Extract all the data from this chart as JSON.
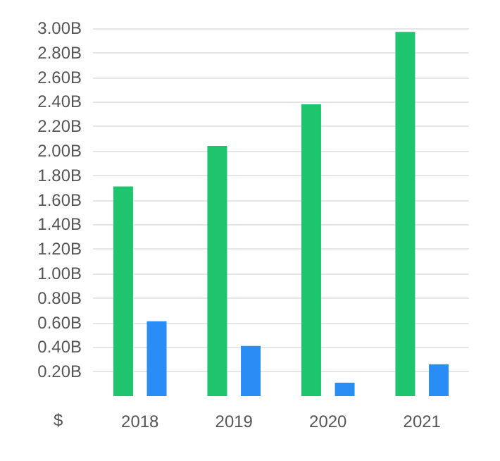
{
  "chart_data": {
    "type": "bar",
    "ylabel": "$",
    "categories": [
      "2018",
      "2019",
      "2020",
      "2021"
    ],
    "series": [
      {
        "color": "#1fc46e",
        "values": [
          1.71,
          2.04,
          2.38,
          2.97
        ]
      },
      {
        "color": "#2a8cf5",
        "values": [
          0.61,
          0.41,
          0.11,
          0.26
        ]
      }
    ],
    "ylim": [
      0,
      3
    ],
    "yticks": [
      {
        "value": 0.2,
        "label": "0.20B"
      },
      {
        "value": 0.4,
        "label": "0.40B"
      },
      {
        "value": 0.6,
        "label": "0.60B"
      },
      {
        "value": 0.8,
        "label": "0.80B"
      },
      {
        "value": 1.0,
        "label": "1.00B"
      },
      {
        "value": 1.2,
        "label": "1.20B"
      },
      {
        "value": 1.4,
        "label": "1.40B"
      },
      {
        "value": 1.6,
        "label": "1.60B"
      },
      {
        "value": 1.8,
        "label": "1.80B"
      },
      {
        "value": 2.0,
        "label": "2.00B"
      },
      {
        "value": 2.2,
        "label": "2.20B"
      },
      {
        "value": 2.4,
        "label": "2.40B"
      },
      {
        "value": 2.6,
        "label": "2.60B"
      },
      {
        "value": 2.8,
        "label": "2.80B"
      },
      {
        "value": 3.0,
        "label": "3.00B"
      }
    ],
    "grid": "y"
  }
}
